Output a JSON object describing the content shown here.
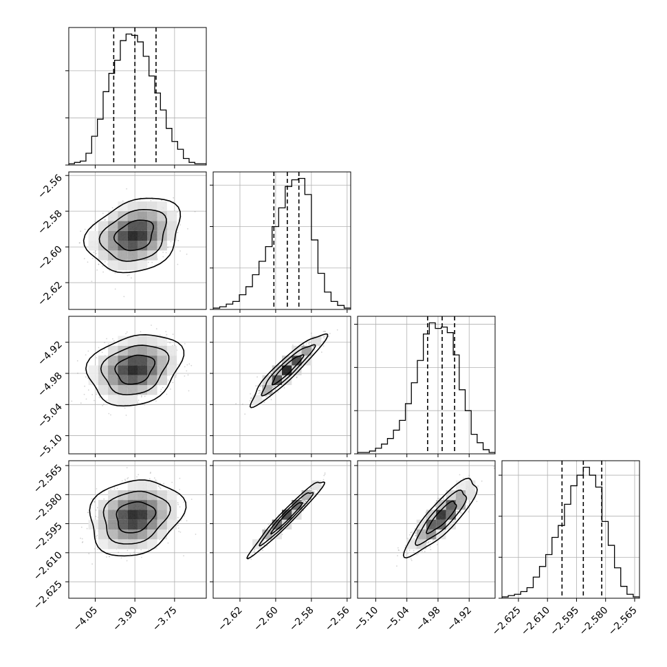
{
  "figure": {
    "type": "corner-plot"
  },
  "chart_data": {
    "type": "corner",
    "n_params": 4,
    "colors": {
      "line": "#000000",
      "points": "#808080",
      "grid": "#b0b0b0",
      "background": "#ffffff"
    },
    "grid": true,
    "params": [
      {
        "index": 0,
        "range": [
          -4.15,
          -3.63
        ],
        "ticks": [
          -4.05,
          -3.9,
          -3.75
        ],
        "tick_labels": [
          "−4.05",
          "−3.90",
          "−3.75"
        ],
        "quantiles": [
          -3.98,
          -3.9,
          -3.82
        ],
        "mean": -3.9,
        "sd": 0.072
      },
      {
        "index": 1,
        "range": [
          -2.635,
          -2.558
        ],
        "ticks": [
          -2.62,
          -2.6,
          -2.58,
          -2.56
        ],
        "tick_labels": [
          "−2.62",
          "−2.60",
          "−2.58",
          "−2.56"
        ],
        "quantiles": [
          -2.601,
          -2.5935,
          -2.587
        ],
        "mean": -2.5935,
        "sd": 0.0085
      },
      {
        "index": 2,
        "range": [
          -5.135,
          -4.87
        ],
        "ticks": [
          -5.1,
          -5.04,
          -4.98,
          -4.92
        ],
        "tick_labels": [
          "−5.10",
          "−5.04",
          "−4.98",
          "−4.92"
        ],
        "quantiles": [
          -5.0,
          -4.972,
          -4.948
        ],
        "mean": -4.972,
        "sd": 0.028
      },
      {
        "index": 3,
        "range": [
          -2.6335,
          -2.5625
        ],
        "ticks": [
          -2.625,
          -2.61,
          -2.595,
          -2.58,
          -2.565
        ],
        "tick_labels": [
          "−2.625",
          "−2.610",
          "−2.595",
          "−2.580",
          "−2.565"
        ],
        "quantiles": [
          -2.6025,
          -2.5915,
          -2.582
        ],
        "mean": -2.5915,
        "sd": 0.008
      }
    ],
    "histograms": [
      {
        "param": 0,
        "counts": [
          1,
          2,
          3,
          9,
          22,
          35,
          56,
          70,
          80,
          95,
          100,
          99,
          94,
          83,
          68,
          55,
          42,
          28,
          18,
          12,
          5,
          2,
          1,
          1
        ],
        "y_ticks": [
          0,
          36,
          72
        ]
      },
      {
        "param": 1,
        "counts": [
          1,
          2,
          4,
          6,
          11,
          17,
          26,
          36,
          47,
          62,
          76,
          92,
          97,
          98,
          86,
          52,
          27,
          13,
          6,
          3,
          1
        ],
        "y_ticks": [
          0,
          31,
          62,
          93
        ]
      },
      {
        "param": 2,
        "counts": [
          1,
          1,
          2,
          4,
          7,
          11,
          17,
          24,
          36,
          51,
          67,
          86,
          94,
          90,
          91,
          87,
          71,
          46,
          31,
          14,
          8,
          3,
          1
        ],
        "y_ticks": [
          0,
          31,
          62,
          93
        ]
      },
      {
        "param": 3,
        "counts": [
          1,
          2,
          3,
          5,
          8,
          16,
          24,
          33,
          46,
          55,
          71,
          85,
          93,
          99,
          93,
          84,
          58,
          40,
          23,
          9,
          3,
          1
        ],
        "y_ticks": [
          0,
          31,
          62,
          93
        ]
      }
    ],
    "pairs": [
      {
        "x_param": 0,
        "y_param": 1,
        "correlation": 0.25
      },
      {
        "x_param": 0,
        "y_param": 2,
        "correlation": 0.22
      },
      {
        "x_param": 1,
        "y_param": 2,
        "correlation": 0.93
      },
      {
        "x_param": 0,
        "y_param": 3,
        "correlation": 0.18
      },
      {
        "x_param": 1,
        "y_param": 3,
        "correlation": 0.97
      },
      {
        "x_param": 2,
        "y_param": 3,
        "correlation": 0.86
      }
    ]
  }
}
